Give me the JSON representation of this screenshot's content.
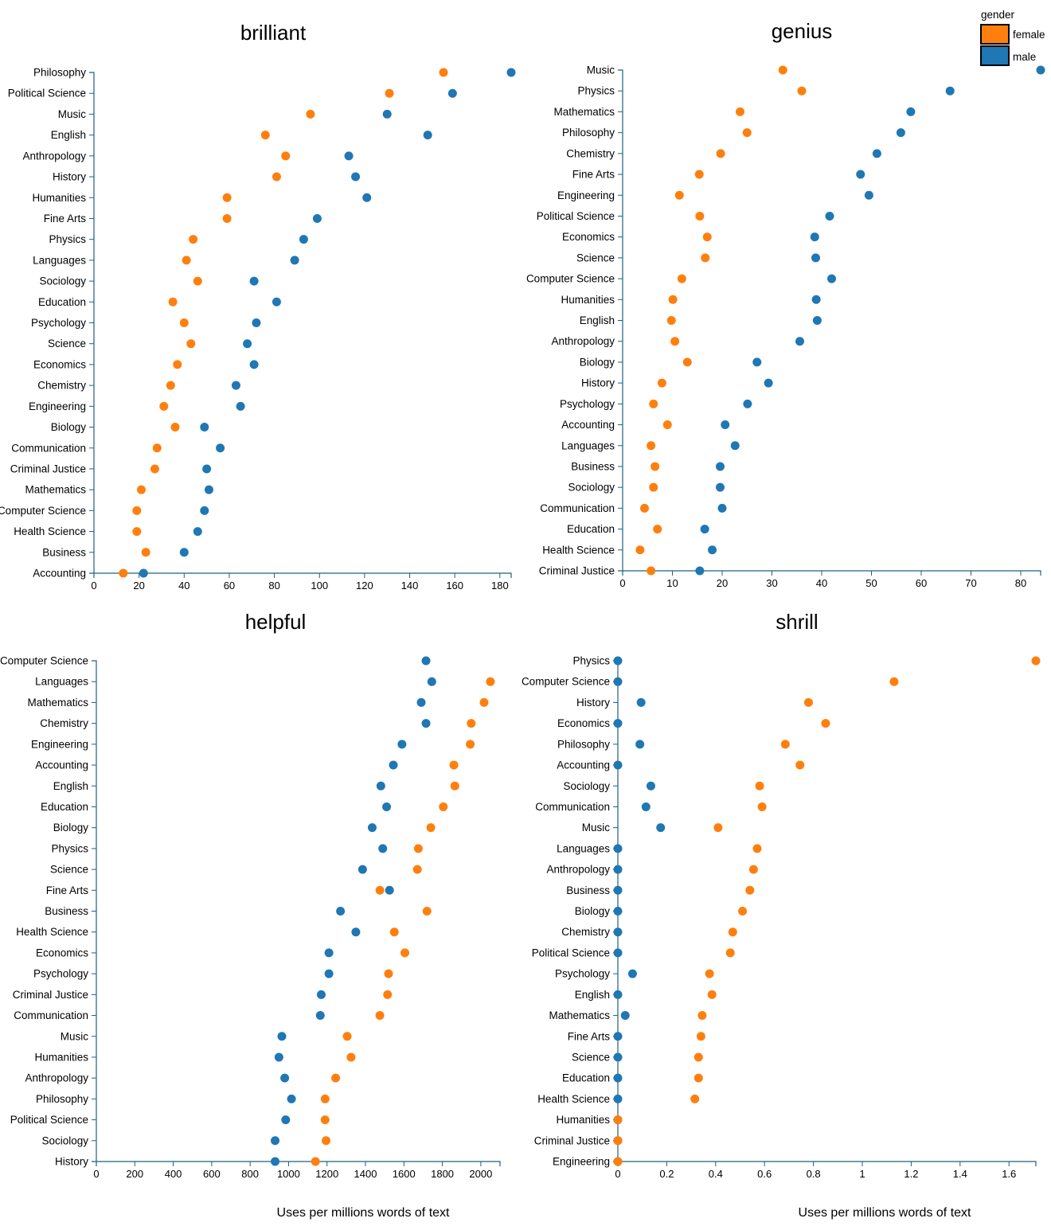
{
  "legend": {
    "title": "gender",
    "entries": [
      {
        "name": "female",
        "color": "#ff7f0e"
      },
      {
        "name": "male",
        "color": "#1f77b4"
      }
    ]
  },
  "xlabel": "Uses per millions words of text",
  "chart_data": [
    {
      "type": "scatter",
      "title": "brilliant",
      "xlabel": "",
      "xlim": [
        0,
        185
      ],
      "xticks": [
        0,
        20,
        40,
        60,
        80,
        100,
        120,
        140,
        160,
        180
      ],
      "categories": [
        "Philosophy",
        "Political Science",
        "Music",
        "English",
        "Anthropology",
        "History",
        "Humanities",
        "Fine Arts",
        "Physics",
        "Languages",
        "Sociology",
        "Education",
        "Psychology",
        "Science",
        "Economics",
        "Chemistry",
        "Engineering",
        "Biology",
        "Communication",
        "Criminal Justice",
        "Mathematics",
        "Computer Science",
        "Health Science",
        "Business",
        "Accounting"
      ],
      "series": [
        {
          "name": "female",
          "color": "#ff7f0e",
          "values": [
            155,
            131,
            96,
            76,
            85,
            81,
            59,
            59,
            44,
            41,
            46,
            35,
            40,
            43,
            37,
            34,
            31,
            36,
            28,
            27,
            21,
            19,
            19,
            23,
            13
          ]
        },
        {
          "name": "male",
          "color": "#1f77b4",
          "values": [
            185,
            159,
            130,
            148,
            113,
            116,
            121,
            99,
            93,
            89,
            71,
            81,
            72,
            68,
            71,
            63,
            65,
            49,
            56,
            50,
            51,
            49,
            46,
            40,
            22
          ]
        }
      ]
    },
    {
      "type": "scatter",
      "title": "genius",
      "xlabel": "",
      "xlim": [
        0,
        84
      ],
      "xticks": [
        0,
        10,
        20,
        30,
        40,
        50,
        60,
        70,
        80
      ],
      "categories": [
        "Music",
        "Physics",
        "Mathematics",
        "Philosophy",
        "Chemistry",
        "Fine Arts",
        "Engineering",
        "Political Science",
        "Economics",
        "Science",
        "Computer Science",
        "Humanities",
        "English",
        "Anthropology",
        "Biology",
        "History",
        "Psychology",
        "Accounting",
        "Languages",
        "Business",
        "Sociology",
        "Communication",
        "Education",
        "Health Science",
        "Criminal Justice"
      ],
      "series": [
        {
          "name": "female",
          "color": "#ff7f0e",
          "values": [
            32.2,
            36,
            23.6,
            25,
            19.7,
            15.4,
            11.4,
            15.5,
            17,
            16.6,
            11.9,
            10.1,
            9.8,
            10.5,
            13,
            7.9,
            6.2,
            9,
            5.7,
            6.5,
            6.2,
            4.4,
            7,
            3.5,
            5.7
          ]
        },
        {
          "name": "male",
          "color": "#1f77b4",
          "values": [
            84,
            65.8,
            57.9,
            55.9,
            51.1,
            47.8,
            49.5,
            41.6,
            38.6,
            38.8,
            42,
            38.9,
            39.1,
            35.6,
            27,
            29.3,
            25.1,
            20.6,
            22.6,
            19.6,
            19.6,
            20,
            16.5,
            18,
            15.5
          ]
        }
      ]
    },
    {
      "type": "scatter",
      "title": "helpful",
      "xlabel": "Uses per millions words of text",
      "xlim": [
        0,
        2100
      ],
      "xticks": [
        0,
        200,
        400,
        600,
        800,
        1000,
        1200,
        1400,
        1600,
        1800,
        2000
      ],
      "categories": [
        "Computer Science",
        "Languages",
        "Mathematics",
        "Chemistry",
        "Engineering",
        "Accounting",
        "English",
        "Education",
        "Biology",
        "Physics",
        "Science",
        "Fine Arts",
        "Business",
        "Health Science",
        "Economics",
        "Psychology",
        "Criminal Justice",
        "Communication",
        "Music",
        "Humanities",
        "Anthropology",
        "Philosophy",
        "Political Science",
        "Sociology",
        "History"
      ],
      "series": [
        {
          "name": "female",
          "color": "#ff7f0e",
          "values": [
            null,
            2050,
            2017,
            1950,
            1945,
            1860,
            1865,
            1805,
            1740,
            1675,
            1670,
            1475,
            1720,
            1550,
            1605,
            1520,
            1515,
            1475,
            1305,
            1325,
            1245,
            1190,
            1190,
            1195,
            1140
          ]
        },
        {
          "name": "male",
          "color": "#1f77b4",
          "values": [
            1715,
            1745,
            1690,
            1715,
            1590,
            1545,
            1480,
            1510,
            1435,
            1490,
            1385,
            1525,
            1270,
            1350,
            1210,
            1210,
            1170,
            1165,
            965,
            950,
            980,
            1015,
            985,
            930,
            930
          ]
        }
      ]
    },
    {
      "type": "scatter",
      "title": "shrill",
      "xlabel": "Uses per millions words of text",
      "xlim": [
        0,
        1.71
      ],
      "xticks": [
        0,
        0.2,
        0.4,
        0.6,
        0.8,
        1,
        1.2,
        1.4,
        1.6
      ],
      "categories": [
        "Physics",
        "Computer Science",
        "History",
        "Economics",
        "Philosophy",
        "Accounting",
        "Sociology",
        "Communication",
        "Music",
        "Languages",
        "Anthropology",
        "Business",
        "Biology",
        "Chemistry",
        "Political Science",
        "Psychology",
        "English",
        "Mathematics",
        "Fine Arts",
        "Science",
        "Education",
        "Health Science",
        "Humanities",
        "Criminal Justice",
        "Engineering"
      ],
      "series": [
        {
          "name": "male",
          "color": "#1f77b4",
          "values": [
            0,
            0,
            0.095,
            0,
            0.09,
            0,
            0.135,
            0.115,
            0.175,
            0,
            0,
            0,
            0,
            0,
            0,
            0.06,
            0,
            0.03,
            0,
            0,
            0,
            0,
            0,
            0,
            0
          ]
        },
        {
          "name": "female",
          "color": "#ff7f0e",
          "values": [
            1.71,
            1.13,
            0.78,
            0.85,
            0.685,
            0.745,
            0.58,
            0.59,
            0.41,
            0.57,
            0.555,
            0.54,
            0.51,
            0.47,
            0.46,
            0.375,
            0.385,
            0.345,
            0.34,
            0.33,
            0.33,
            0.315,
            0,
            0,
            0
          ]
        }
      ]
    }
  ]
}
